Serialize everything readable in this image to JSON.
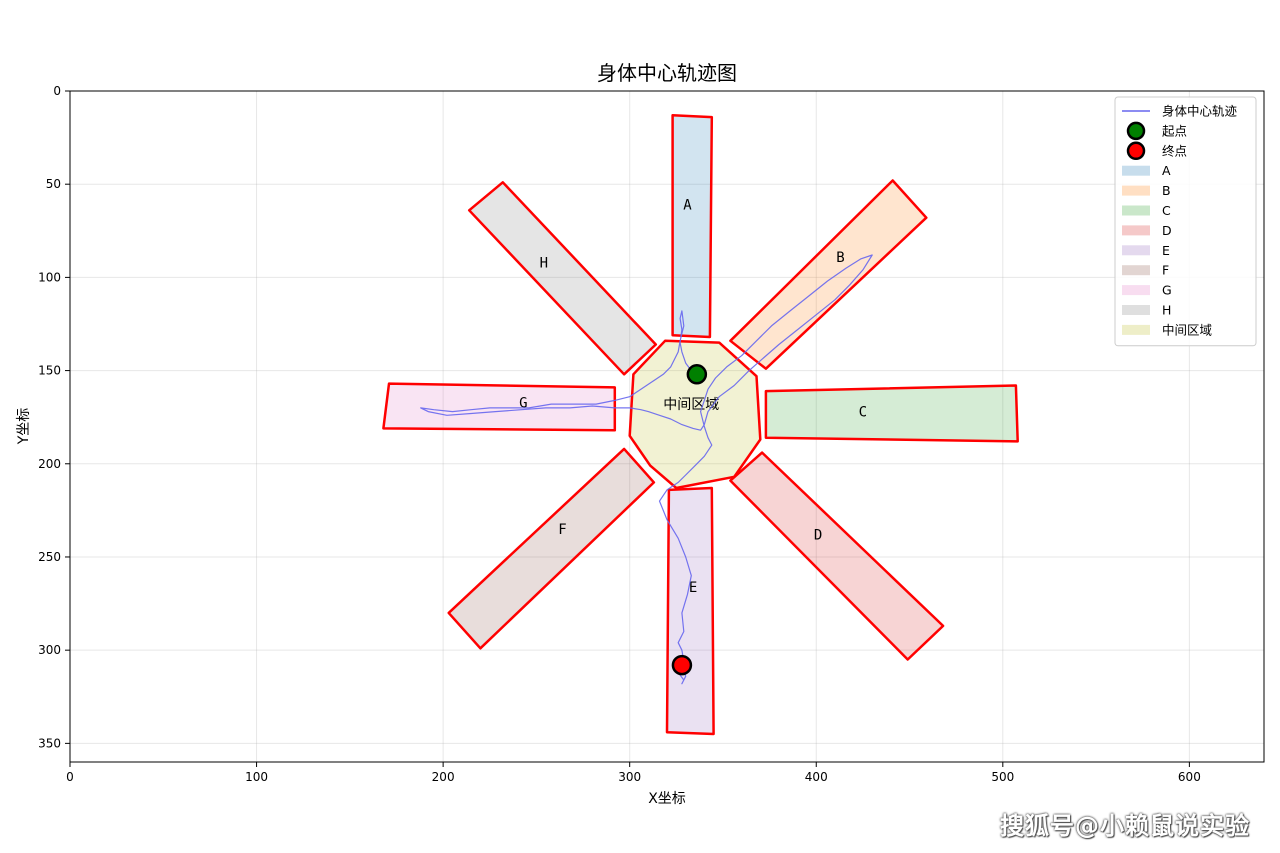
{
  "chart_data": {
    "type": "line",
    "title": "身体中心轨迹图",
    "xlabel": "X坐标",
    "ylabel": "Y坐标",
    "xlim": [
      0,
      640
    ],
    "ylim": [
      360,
      0
    ],
    "y_inverted": true,
    "grid": true,
    "legend_placement": "top-right",
    "x_ticks": [
      0,
      100,
      200,
      300,
      400,
      500,
      600
    ],
    "y_ticks": [
      0,
      50,
      100,
      150,
      200,
      250,
      300,
      350
    ],
    "regions": [
      {
        "name": "A",
        "color": "#1f77b4",
        "label_pos": [
          331,
          61
        ],
        "polygon": [
          [
            323,
            13
          ],
          [
            344,
            14
          ],
          [
            343,
            132
          ],
          [
            323,
            131
          ]
        ]
      },
      {
        "name": "B",
        "color": "#ff7f0e",
        "label_pos": [
          413,
          89
        ],
        "polygon": [
          [
            441,
            48
          ],
          [
            459,
            68
          ],
          [
            373,
            149
          ],
          [
            354,
            134
          ]
        ]
      },
      {
        "name": "C",
        "color": "#2ca02c",
        "label_pos": [
          425,
          172
        ],
        "polygon": [
          [
            373,
            161
          ],
          [
            507,
            158
          ],
          [
            508,
            188
          ],
          [
            373,
            186
          ]
        ]
      },
      {
        "name": "D",
        "color": "#d62728",
        "label_pos": [
          401,
          238
        ],
        "polygon": [
          [
            354,
            209
          ],
          [
            371,
            194
          ],
          [
            468,
            287
          ],
          [
            449,
            305
          ]
        ]
      },
      {
        "name": "E",
        "color": "#9467bd",
        "label_pos": [
          334,
          266
        ],
        "polygon": [
          [
            321,
            214
          ],
          [
            344,
            213
          ],
          [
            345,
            345
          ],
          [
            320,
            344
          ]
        ]
      },
      {
        "name": "F",
        "color": "#8c564b",
        "label_pos": [
          264,
          235
        ],
        "polygon": [
          [
            297,
            192
          ],
          [
            313,
            210
          ],
          [
            220,
            299
          ],
          [
            203,
            280
          ]
        ]
      },
      {
        "name": "G",
        "color": "#e377c2",
        "label_pos": [
          243,
          167
        ],
        "polygon": [
          [
            171,
            157
          ],
          [
            292,
            159
          ],
          [
            292,
            182
          ],
          [
            168,
            181
          ]
        ]
      },
      {
        "name": "H",
        "color": "#7f7f7f",
        "label_pos": [
          254,
          92
        ],
        "polygon": [
          [
            214,
            64
          ],
          [
            232,
            49
          ],
          [
            314,
            136
          ],
          [
            297,
            152
          ]
        ]
      },
      {
        "name": "中间区域",
        "color": "#bcbd22",
        "label_pos": [
          333,
          168
        ],
        "polygon": [
          [
            319,
            134
          ],
          [
            348,
            135
          ],
          [
            368,
            153
          ],
          [
            370,
            187
          ],
          [
            356,
            207
          ],
          [
            325,
            213
          ],
          [
            311,
            201
          ],
          [
            300,
            185
          ],
          [
            302,
            152
          ]
        ]
      }
    ],
    "series": [
      {
        "name": "身体中心轨迹",
        "color": "#6666ee",
        "x": [
          336,
          333,
          330,
          328,
          327,
          328,
          327,
          328,
          329,
          327,
          326,
          322,
          318,
          312,
          306,
          300,
          292,
          282,
          270,
          258,
          246,
          235,
          225,
          215,
          205,
          195,
          188,
          192,
          202,
          215,
          228,
          242,
          255,
          268,
          280,
          292,
          300,
          306,
          310,
          316,
          322,
          328,
          334,
          338,
          340,
          342,
          348,
          356,
          364,
          372,
          380,
          390,
          400,
          410,
          418,
          425,
          430,
          424,
          416,
          406,
          396,
          386,
          376,
          368,
          360,
          352,
          346,
          342,
          340,
          338,
          340,
          342,
          344,
          340,
          336,
          330,
          326,
          320,
          316,
          320,
          326,
          330,
          333,
          331,
          328,
          329,
          326,
          328,
          329,
          327,
          326,
          329,
          328,
          330,
          328
        ],
        "y": [
          152,
          150,
          146,
          140,
          135,
          128,
          122,
          118,
          126,
          134,
          140,
          148,
          152,
          156,
          160,
          164,
          166,
          168,
          168,
          168,
          170,
          170,
          170,
          171,
          172,
          171,
          170,
          172,
          174,
          173,
          172,
          171,
          170,
          170,
          169,
          170,
          170,
          171,
          172,
          174,
          176,
          179,
          181,
          182,
          179,
          172,
          164,
          158,
          150,
          143,
          136,
          128,
          120,
          112,
          104,
          96,
          88,
          90,
          95,
          102,
          110,
          118,
          126,
          134,
          142,
          148,
          154,
          160,
          166,
          172,
          180,
          186,
          190,
          196,
          200,
          206,
          210,
          214,
          220,
          230,
          240,
          250,
          260,
          270,
          280,
          290,
          296,
          300,
          306,
          310,
          312,
          316,
          318,
          314,
          308
        ]
      },
      {
        "name": "起点",
        "type": "scatter",
        "color": "#008000",
        "x": [
          336
        ],
        "y": [
          152
        ]
      },
      {
        "name": "终点",
        "type": "scatter",
        "color": "#ff0000",
        "x": [
          328
        ],
        "y": [
          308
        ]
      }
    ]
  },
  "watermark": "搜狐号@小赖鼠说实验"
}
